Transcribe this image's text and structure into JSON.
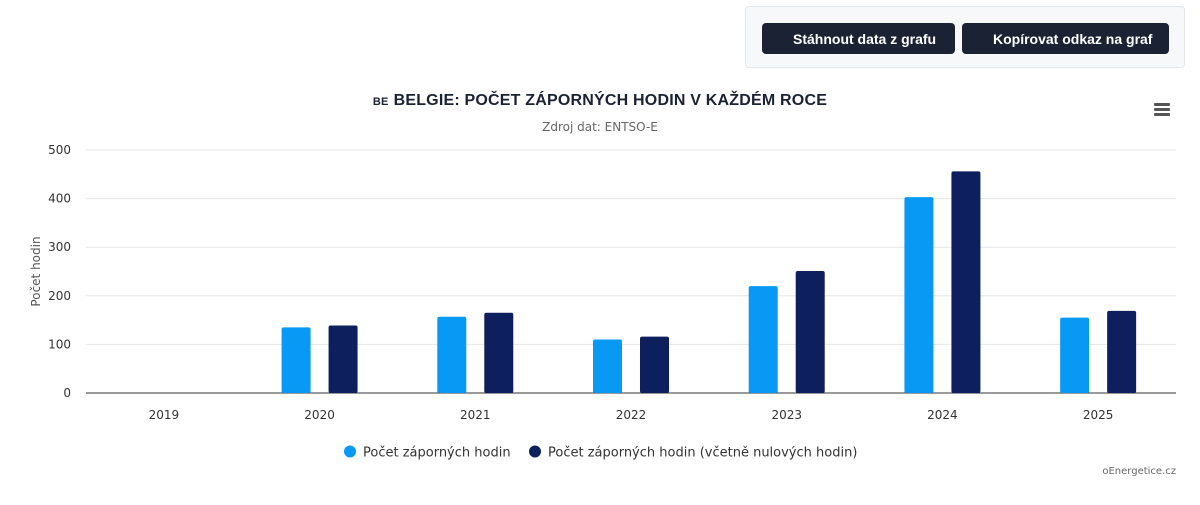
{
  "toolbar": {
    "download_label": "Stáhnout data z grafu",
    "copy_link_label": "Kopírovat odkaz na graf"
  },
  "chart_header": {
    "flag": "BE",
    "title": "BELGIE: POČET ZÁPORNÝCH HODIN V KAŽDÉM ROCE",
    "subtitle": "Zdroj dat: ENTSO-E"
  },
  "credit": "oEnergetice.cz",
  "chart_data": {
    "type": "bar",
    "title": "BELGIE: POČET ZÁPORNÝCH HODIN V KAŽDÉM ROCE",
    "subtitle": "Zdroj dat: ENTSO-E",
    "xlabel": "",
    "ylabel": "Počet hodin",
    "ylim": [
      0,
      500
    ],
    "yticks": [
      0,
      100,
      200,
      300,
      400,
      500
    ],
    "grid": true,
    "legend_position": "bottom",
    "categories": [
      "2019",
      "2020",
      "2021",
      "2022",
      "2023",
      "2024",
      "2025"
    ],
    "series": [
      {
        "name": "Počet záporných hodin",
        "color": "#0899f5",
        "values": [
          0,
          135,
          157,
          110,
          220,
          403,
          155
        ]
      },
      {
        "name": "Počet záporných hodin (včetně nulových hodin)",
        "color": "#0d1f5c",
        "values": [
          0,
          139,
          165,
          116,
          251,
          456,
          169
        ]
      }
    ]
  }
}
